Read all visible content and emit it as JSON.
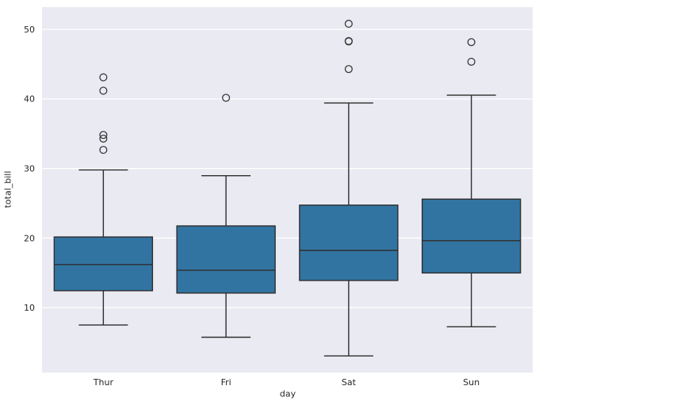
{
  "chart_data": {
    "type": "box",
    "title": "",
    "xlabel": "day",
    "ylabel": "total_bill",
    "categories": [
      "Thur",
      "Fri",
      "Sat",
      "Sun"
    ],
    "ytick_values": [
      10,
      20,
      30,
      40,
      50
    ],
    "ytick_labels": [
      "10",
      "20",
      "30",
      "40",
      "50"
    ],
    "ylim": [
      0.68,
      53.2
    ],
    "grid": "horizontal",
    "legend_position": "none",
    "boxes": [
      {
        "category": "Thur",
        "whisker_low": 7.51,
        "q1": 12.44,
        "median": 16.2,
        "q3": 20.16,
        "whisker_high": 29.8,
        "outliers": [
          32.68,
          34.3,
          34.83,
          41.19,
          43.11
        ]
      },
      {
        "category": "Fri",
        "whisker_low": 5.75,
        "q1": 12.1,
        "median": 15.38,
        "q3": 21.75,
        "whisker_high": 28.97,
        "outliers": [
          40.17
        ]
      },
      {
        "category": "Sat",
        "whisker_low": 3.07,
        "q1": 13.91,
        "median": 18.24,
        "q3": 24.74,
        "whisker_high": 39.42,
        "outliers": [
          44.3,
          48.27,
          48.33,
          50.81
        ]
      },
      {
        "category": "Sun",
        "whisker_low": 7.25,
        "q1": 14.99,
        "median": 19.63,
        "q3": 25.6,
        "whisker_high": 40.55,
        "outliers": [
          45.35,
          48.17
        ]
      }
    ],
    "colors": {
      "box_fill": "#3274a1",
      "box_edge": "#2e2e2e",
      "median_line": "#2e2e2e",
      "whisker_line": "#2e2e2e",
      "outlier_edge": "#3a3a3a",
      "plot_background": "#eaeaf2",
      "gridline": "#ffffff",
      "tick_text": "#262626",
      "figure_background": "#ffffff"
    }
  }
}
